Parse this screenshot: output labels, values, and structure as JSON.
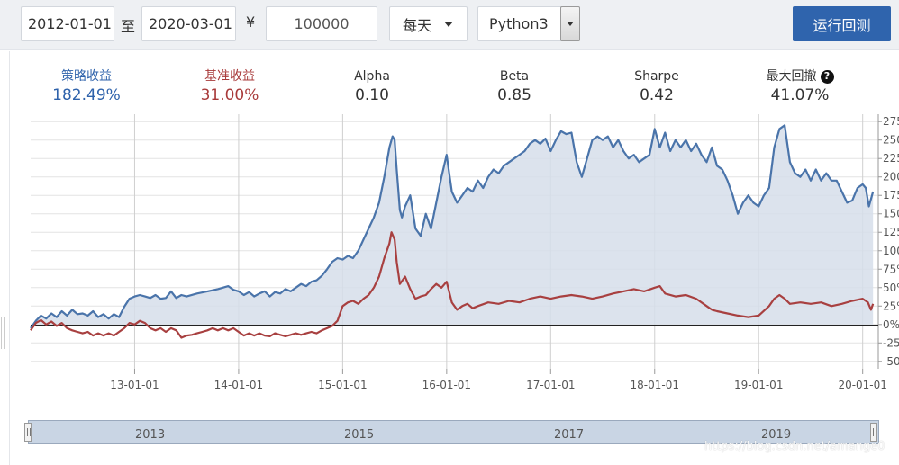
{
  "toolbar": {
    "start_date": "2012-01-01",
    "separator": "至",
    "end_date": "2020-03-01",
    "currency_symbol": "¥",
    "capital": "100000",
    "frequency": "每天",
    "language": "Python3",
    "run_label": "运行回测",
    "run_color": "#2f64ad"
  },
  "stats": [
    {
      "label": "策略收益",
      "value": "182.49%",
      "color": "#2e62ab"
    },
    {
      "label": "基准收益",
      "value": "31.00%",
      "color": "#a83a3a"
    },
    {
      "label": "Alpha",
      "value": "0.10"
    },
    {
      "label": "Beta",
      "value": "0.85"
    },
    {
      "label": "Sharpe",
      "value": "0.42"
    },
    {
      "label": "最大回撤",
      "value": "41.07%",
      "icon": "help-icon"
    }
  ],
  "chart_data": {
    "type": "area",
    "x_tick_labels": [
      "13-01-01",
      "14-01-01",
      "15-01-01",
      "16-01-01",
      "17-01-01",
      "18-01-01",
      "19-01-01",
      "20-01-01"
    ],
    "y_tick_labels": [
      "-50%",
      "-25%",
      "0%",
      "25%",
      "50%",
      "75%",
      "100%",
      "125%",
      "150%",
      "175%",
      "200%",
      "225%",
      "250%",
      "275%"
    ],
    "ylim": [
      -60,
      285
    ],
    "series": [
      {
        "color": "#4a74aa",
        "fill": "#d6deea",
        "points": [
          [
            2012.0,
            -5
          ],
          [
            2012.05,
            5
          ],
          [
            2012.1,
            12
          ],
          [
            2012.15,
            8
          ],
          [
            2012.2,
            15
          ],
          [
            2012.25,
            10
          ],
          [
            2012.3,
            18
          ],
          [
            2012.35,
            12
          ],
          [
            2012.4,
            20
          ],
          [
            2012.45,
            14
          ],
          [
            2012.5,
            15
          ],
          [
            2012.55,
            12
          ],
          [
            2012.6,
            18
          ],
          [
            2012.65,
            10
          ],
          [
            2012.7,
            14
          ],
          [
            2012.75,
            8
          ],
          [
            2012.8,
            14
          ],
          [
            2012.85,
            10
          ],
          [
            2012.9,
            24
          ],
          [
            2012.95,
            35
          ],
          [
            2013.0,
            38
          ],
          [
            2013.05,
            40
          ],
          [
            2013.1,
            38
          ],
          [
            2013.15,
            36
          ],
          [
            2013.2,
            40
          ],
          [
            2013.25,
            35
          ],
          [
            2013.3,
            36
          ],
          [
            2013.35,
            45
          ],
          [
            2013.4,
            36
          ],
          [
            2013.45,
            40
          ],
          [
            2013.5,
            38
          ],
          [
            2013.6,
            42
          ],
          [
            2013.7,
            45
          ],
          [
            2013.8,
            48
          ],
          [
            2013.9,
            52
          ],
          [
            2013.95,
            47
          ],
          [
            2014.0,
            45
          ],
          [
            2014.05,
            40
          ],
          [
            2014.1,
            44
          ],
          [
            2014.15,
            38
          ],
          [
            2014.2,
            42
          ],
          [
            2014.25,
            45
          ],
          [
            2014.3,
            38
          ],
          [
            2014.35,
            44
          ],
          [
            2014.4,
            42
          ],
          [
            2014.45,
            48
          ],
          [
            2014.5,
            45
          ],
          [
            2014.55,
            50
          ],
          [
            2014.6,
            55
          ],
          [
            2014.65,
            52
          ],
          [
            2014.7,
            58
          ],
          [
            2014.75,
            60
          ],
          [
            2014.8,
            66
          ],
          [
            2014.85,
            75
          ],
          [
            2014.9,
            85
          ],
          [
            2014.95,
            90
          ],
          [
            2015.0,
            88
          ],
          [
            2015.05,
            93
          ],
          [
            2015.1,
            90
          ],
          [
            2015.15,
            100
          ],
          [
            2015.2,
            115
          ],
          [
            2015.25,
            130
          ],
          [
            2015.3,
            145
          ],
          [
            2015.35,
            165
          ],
          [
            2015.4,
            200
          ],
          [
            2015.45,
            240
          ],
          [
            2015.48,
            255
          ],
          [
            2015.5,
            250
          ],
          [
            2015.52,
            210
          ],
          [
            2015.55,
            155
          ],
          [
            2015.57,
            145
          ],
          [
            2015.6,
            160
          ],
          [
            2015.65,
            175
          ],
          [
            2015.7,
            130
          ],
          [
            2015.75,
            120
          ],
          [
            2015.8,
            150
          ],
          [
            2015.85,
            130
          ],
          [
            2015.9,
            165
          ],
          [
            2015.95,
            200
          ],
          [
            2016.0,
            230
          ],
          [
            2016.02,
            210
          ],
          [
            2016.05,
            180
          ],
          [
            2016.1,
            165
          ],
          [
            2016.15,
            175
          ],
          [
            2016.2,
            185
          ],
          [
            2016.25,
            180
          ],
          [
            2016.3,
            195
          ],
          [
            2016.35,
            185
          ],
          [
            2016.4,
            200
          ],
          [
            2016.45,
            210
          ],
          [
            2016.5,
            205
          ],
          [
            2016.55,
            215
          ],
          [
            2016.6,
            220
          ],
          [
            2016.65,
            225
          ],
          [
            2016.7,
            230
          ],
          [
            2016.75,
            235
          ],
          [
            2016.8,
            245
          ],
          [
            2016.85,
            250
          ],
          [
            2016.9,
            245
          ],
          [
            2016.95,
            252
          ],
          [
            2017.0,
            235
          ],
          [
            2017.05,
            250
          ],
          [
            2017.1,
            262
          ],
          [
            2017.15,
            258
          ],
          [
            2017.2,
            260
          ],
          [
            2017.25,
            220
          ],
          [
            2017.3,
            200
          ],
          [
            2017.35,
            225
          ],
          [
            2017.4,
            250
          ],
          [
            2017.45,
            255
          ],
          [
            2017.5,
            250
          ],
          [
            2017.55,
            255
          ],
          [
            2017.6,
            240
          ],
          [
            2017.65,
            250
          ],
          [
            2017.7,
            235
          ],
          [
            2017.75,
            225
          ],
          [
            2017.8,
            230
          ],
          [
            2017.85,
            220
          ],
          [
            2017.9,
            225
          ],
          [
            2017.95,
            230
          ],
          [
            2018.0,
            265
          ],
          [
            2018.05,
            240
          ],
          [
            2018.1,
            260
          ],
          [
            2018.15,
            235
          ],
          [
            2018.2,
            250
          ],
          [
            2018.25,
            240
          ],
          [
            2018.3,
            250
          ],
          [
            2018.35,
            235
          ],
          [
            2018.4,
            245
          ],
          [
            2018.45,
            230
          ],
          [
            2018.5,
            220
          ],
          [
            2018.55,
            240
          ],
          [
            2018.6,
            215
          ],
          [
            2018.65,
            210
          ],
          [
            2018.7,
            195
          ],
          [
            2018.75,
            175
          ],
          [
            2018.8,
            150
          ],
          [
            2018.85,
            165
          ],
          [
            2018.9,
            175
          ],
          [
            2018.95,
            165
          ],
          [
            2019.0,
            160
          ],
          [
            2019.05,
            175
          ],
          [
            2019.1,
            185
          ],
          [
            2019.15,
            240
          ],
          [
            2019.2,
            265
          ],
          [
            2019.25,
            270
          ],
          [
            2019.3,
            220
          ],
          [
            2019.35,
            205
          ],
          [
            2019.4,
            200
          ],
          [
            2019.45,
            210
          ],
          [
            2019.5,
            195
          ],
          [
            2019.55,
            210
          ],
          [
            2019.6,
            195
          ],
          [
            2019.65,
            205
          ],
          [
            2019.7,
            195
          ],
          [
            2019.75,
            195
          ],
          [
            2019.8,
            180
          ],
          [
            2019.85,
            165
          ],
          [
            2019.9,
            168
          ],
          [
            2019.95,
            185
          ],
          [
            2020.0,
            190
          ],
          [
            2020.03,
            185
          ],
          [
            2020.06,
            160
          ],
          [
            2020.1,
            180
          ]
        ]
      },
      {
        "color": "#a84040",
        "points": [
          [
            2012.0,
            -8
          ],
          [
            2012.05,
            2
          ],
          [
            2012.1,
            6
          ],
          [
            2012.15,
            0
          ],
          [
            2012.2,
            4
          ],
          [
            2012.25,
            -2
          ],
          [
            2012.3,
            2
          ],
          [
            2012.35,
            -5
          ],
          [
            2012.4,
            -8
          ],
          [
            2012.45,
            -10
          ],
          [
            2012.5,
            -12
          ],
          [
            2012.55,
            -10
          ],
          [
            2012.6,
            -15
          ],
          [
            2012.65,
            -12
          ],
          [
            2012.7,
            -15
          ],
          [
            2012.75,
            -12
          ],
          [
            2012.8,
            -15
          ],
          [
            2012.85,
            -10
          ],
          [
            2012.9,
            -5
          ],
          [
            2012.95,
            2
          ],
          [
            2013.0,
            0
          ],
          [
            2013.05,
            5
          ],
          [
            2013.1,
            2
          ],
          [
            2013.15,
            -5
          ],
          [
            2013.2,
            -8
          ],
          [
            2013.25,
            -5
          ],
          [
            2013.3,
            -10
          ],
          [
            2013.35,
            -5
          ],
          [
            2013.4,
            -8
          ],
          [
            2013.45,
            -18
          ],
          [
            2013.5,
            -15
          ],
          [
            2013.55,
            -14
          ],
          [
            2013.6,
            -12
          ],
          [
            2013.65,
            -10
          ],
          [
            2013.7,
            -8
          ],
          [
            2013.75,
            -5
          ],
          [
            2013.8,
            -8
          ],
          [
            2013.85,
            -5
          ],
          [
            2013.9,
            -8
          ],
          [
            2013.95,
            -5
          ],
          [
            2014.0,
            -10
          ],
          [
            2014.05,
            -15
          ],
          [
            2014.1,
            -12
          ],
          [
            2014.15,
            -15
          ],
          [
            2014.2,
            -12
          ],
          [
            2014.25,
            -15
          ],
          [
            2014.3,
            -16
          ],
          [
            2014.35,
            -12
          ],
          [
            2014.4,
            -14
          ],
          [
            2014.45,
            -16
          ],
          [
            2014.5,
            -14
          ],
          [
            2014.55,
            -12
          ],
          [
            2014.6,
            -14
          ],
          [
            2014.65,
            -12
          ],
          [
            2014.7,
            -10
          ],
          [
            2014.75,
            -12
          ],
          [
            2014.8,
            -8
          ],
          [
            2014.85,
            -5
          ],
          [
            2014.9,
            -2
          ],
          [
            2014.95,
            5
          ],
          [
            2015.0,
            25
          ],
          [
            2015.05,
            30
          ],
          [
            2015.1,
            32
          ],
          [
            2015.15,
            28
          ],
          [
            2015.2,
            35
          ],
          [
            2015.25,
            40
          ],
          [
            2015.3,
            50
          ],
          [
            2015.35,
            65
          ],
          [
            2015.4,
            90
          ],
          [
            2015.45,
            110
          ],
          [
            2015.47,
            125
          ],
          [
            2015.5,
            115
          ],
          [
            2015.52,
            85
          ],
          [
            2015.55,
            55
          ],
          [
            2015.6,
            65
          ],
          [
            2015.65,
            48
          ],
          [
            2015.7,
            35
          ],
          [
            2015.75,
            38
          ],
          [
            2015.8,
            40
          ],
          [
            2015.85,
            48
          ],
          [
            2015.9,
            55
          ],
          [
            2015.95,
            50
          ],
          [
            2016.0,
            58
          ],
          [
            2016.05,
            30
          ],
          [
            2016.1,
            20
          ],
          [
            2016.15,
            25
          ],
          [
            2016.2,
            28
          ],
          [
            2016.25,
            22
          ],
          [
            2016.3,
            25
          ],
          [
            2016.4,
            30
          ],
          [
            2016.5,
            28
          ],
          [
            2016.6,
            32
          ],
          [
            2016.7,
            30
          ],
          [
            2016.8,
            35
          ],
          [
            2016.9,
            38
          ],
          [
            2017.0,
            35
          ],
          [
            2017.1,
            38
          ],
          [
            2017.2,
            40
          ],
          [
            2017.3,
            38
          ],
          [
            2017.4,
            35
          ],
          [
            2017.5,
            38
          ],
          [
            2017.6,
            42
          ],
          [
            2017.7,
            45
          ],
          [
            2017.8,
            48
          ],
          [
            2017.9,
            45
          ],
          [
            2018.0,
            50
          ],
          [
            2018.05,
            52
          ],
          [
            2018.1,
            42
          ],
          [
            2018.2,
            38
          ],
          [
            2018.3,
            40
          ],
          [
            2018.4,
            35
          ],
          [
            2018.5,
            25
          ],
          [
            2018.55,
            20
          ],
          [
            2018.6,
            18
          ],
          [
            2018.7,
            15
          ],
          [
            2018.8,
            12
          ],
          [
            2018.9,
            10
          ],
          [
            2019.0,
            12
          ],
          [
            2019.1,
            25
          ],
          [
            2019.15,
            35
          ],
          [
            2019.2,
            40
          ],
          [
            2019.25,
            35
          ],
          [
            2019.3,
            28
          ],
          [
            2019.4,
            30
          ],
          [
            2019.5,
            28
          ],
          [
            2019.6,
            30
          ],
          [
            2019.7,
            25
          ],
          [
            2019.8,
            28
          ],
          [
            2019.9,
            32
          ],
          [
            2020.0,
            35
          ],
          [
            2020.05,
            30
          ],
          [
            2020.08,
            20
          ],
          [
            2020.1,
            28
          ]
        ]
      }
    ]
  },
  "navigator": {
    "years": [
      "2013",
      "2015",
      "2017",
      "2019"
    ]
  },
  "watermark": "https://blog.csdn.net/amange0"
}
